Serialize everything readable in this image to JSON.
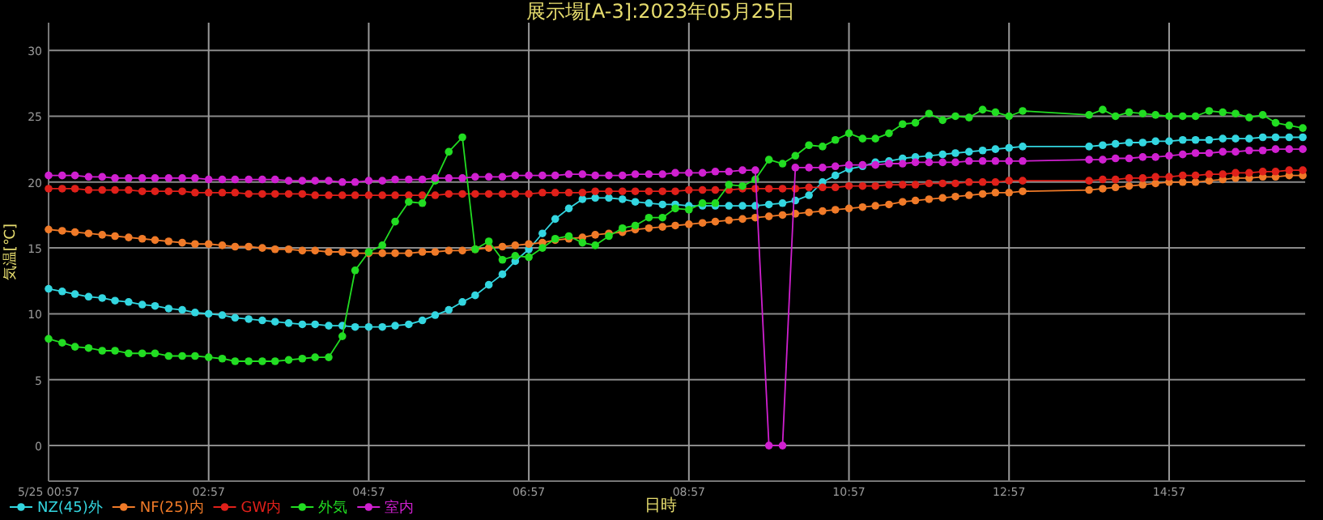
{
  "chart_data": {
    "type": "line",
    "title": "展示場[A-3]:2023年05月25日",
    "xlabel": "日時",
    "ylabel": "気温[℃]",
    "x": [
      0.95,
      1.12,
      1.28,
      1.45,
      1.62,
      1.78,
      1.95,
      2.12,
      2.28,
      2.45,
      2.62,
      2.78,
      2.95,
      3.12,
      3.28,
      3.45,
      3.62,
      3.78,
      3.95,
      4.12,
      4.28,
      4.45,
      4.62,
      4.78,
      4.95,
      5.12,
      5.28,
      5.45,
      5.62,
      5.78,
      5.95,
      6.12,
      6.28,
      6.45,
      6.62,
      6.78,
      6.95,
      7.12,
      7.28,
      7.45,
      7.62,
      7.78,
      7.95,
      8.12,
      8.28,
      8.45,
      8.62,
      8.78,
      8.95,
      9.12,
      9.28,
      9.45,
      9.62,
      9.78,
      9.95,
      10.12,
      10.28,
      10.45,
      10.62,
      10.78,
      10.95,
      11.12,
      11.28,
      11.45,
      11.62,
      11.78,
      11.95,
      12.12,
      12.28,
      12.45,
      12.62,
      12.78,
      12.95,
      13.12,
      13.95,
      14.12,
      14.28,
      14.45,
      14.62,
      14.78,
      14.95,
      15.12,
      15.28,
      15.45,
      15.62,
      15.78,
      15.95,
      16.12,
      16.28,
      16.45,
      16.62
    ],
    "series": [
      {
        "name": "NZ(45)外",
        "color": "#33d6e0",
        "values": [
          11.9,
          11.7,
          11.5,
          11.3,
          11.2,
          11.0,
          10.9,
          10.7,
          10.6,
          10.4,
          10.3,
          10.1,
          10.0,
          9.9,
          9.7,
          9.6,
          9.5,
          9.4,
          9.3,
          9.2,
          9.2,
          9.1,
          9.1,
          9.0,
          9.0,
          9.0,
          9.1,
          9.2,
          9.5,
          9.9,
          10.3,
          10.9,
          11.4,
          12.2,
          13.0,
          14.0,
          14.9,
          16.1,
          17.2,
          18.0,
          18.7,
          18.8,
          18.8,
          18.7,
          18.5,
          18.4,
          18.3,
          18.3,
          18.2,
          18.2,
          18.2,
          18.2,
          18.2,
          18.2,
          18.3,
          18.4,
          18.6,
          19.0,
          20.0,
          20.5,
          21.0,
          21.2,
          21.5,
          21.6,
          21.8,
          21.9,
          22.0,
          22.1,
          22.2,
          22.3,
          22.4,
          22.5,
          22.6,
          22.7,
          22.7,
          22.8,
          22.9,
          23.0,
          23.0,
          23.1,
          23.1,
          23.2,
          23.2,
          23.2,
          23.3,
          23.3,
          23.3,
          23.4,
          23.4,
          23.4,
          23.4
        ]
      },
      {
        "name": "NF(25)内",
        "color": "#f07a28",
        "values": [
          16.4,
          16.3,
          16.2,
          16.1,
          16.0,
          15.9,
          15.8,
          15.7,
          15.6,
          15.5,
          15.4,
          15.3,
          15.3,
          15.2,
          15.1,
          15.1,
          15.0,
          14.9,
          14.9,
          14.8,
          14.8,
          14.7,
          14.7,
          14.6,
          14.6,
          14.6,
          14.6,
          14.6,
          14.7,
          14.7,
          14.8,
          14.8,
          14.9,
          15.0,
          15.1,
          15.2,
          15.3,
          15.4,
          15.6,
          15.7,
          15.8,
          16.0,
          16.1,
          16.2,
          16.4,
          16.5,
          16.6,
          16.7,
          16.8,
          16.9,
          17.0,
          17.1,
          17.2,
          17.3,
          17.4,
          17.5,
          17.6,
          17.7,
          17.8,
          17.9,
          18.0,
          18.1,
          18.2,
          18.3,
          18.5,
          18.6,
          18.7,
          18.8,
          18.9,
          19.0,
          19.1,
          19.2,
          19.2,
          19.3,
          19.4,
          19.5,
          19.6,
          19.7,
          19.8,
          19.9,
          20.0,
          20.0,
          20.0,
          20.1,
          20.2,
          20.3,
          20.3,
          20.4,
          20.4,
          20.5,
          20.5
        ]
      },
      {
        "name": "GW内",
        "color": "#e0201a",
        "values": [
          19.5,
          19.5,
          19.5,
          19.4,
          19.4,
          19.4,
          19.4,
          19.3,
          19.3,
          19.3,
          19.3,
          19.2,
          19.2,
          19.2,
          19.2,
          19.1,
          19.1,
          19.1,
          19.1,
          19.1,
          19.0,
          19.0,
          19.0,
          19.0,
          19.0,
          19.0,
          19.0,
          19.0,
          19.0,
          19.0,
          19.1,
          19.1,
          19.1,
          19.1,
          19.1,
          19.1,
          19.1,
          19.2,
          19.2,
          19.2,
          19.2,
          19.3,
          19.3,
          19.3,
          19.3,
          19.3,
          19.3,
          19.3,
          19.4,
          19.4,
          19.4,
          19.4,
          19.5,
          19.5,
          19.5,
          19.5,
          19.5,
          19.6,
          19.6,
          19.6,
          19.7,
          19.7,
          19.7,
          19.8,
          19.8,
          19.8,
          19.9,
          19.9,
          19.9,
          20.0,
          20.0,
          20.0,
          20.1,
          20.1,
          20.1,
          20.2,
          20.2,
          20.3,
          20.3,
          20.4,
          20.4,
          20.5,
          20.5,
          20.6,
          20.6,
          20.7,
          20.7,
          20.8,
          20.8,
          20.9,
          20.9
        ]
      },
      {
        "name": "外気",
        "color": "#22dd22",
        "values": [
          8.1,
          7.8,
          7.5,
          7.4,
          7.2,
          7.2,
          7.0,
          7.0,
          7.0,
          6.8,
          6.8,
          6.8,
          6.7,
          6.6,
          6.4,
          6.4,
          6.4,
          6.4,
          6.5,
          6.6,
          6.7,
          6.7,
          8.3,
          13.3,
          14.7,
          15.2,
          17.0,
          18.5,
          18.4,
          20.1,
          22.3,
          23.4,
          14.9,
          15.5,
          14.1,
          14.4,
          14.3,
          15.0,
          15.7,
          15.9,
          15.4,
          15.2,
          15.9,
          16.5,
          16.7,
          17.3,
          17.3,
          18.0,
          17.9,
          18.4,
          18.4,
          19.8,
          19.7,
          20.2,
          21.7,
          21.4,
          22.0,
          22.8,
          22.7,
          23.2,
          23.7,
          23.3,
          23.3,
          23.7,
          24.4,
          24.5,
          25.2,
          24.7,
          25.0,
          24.9,
          25.5,
          25.3,
          25.0,
          25.4,
          25.1,
          25.5,
          25.0,
          25.3,
          25.2,
          25.1,
          25.0,
          25.0,
          25.0,
          25.4,
          25.3,
          25.2,
          24.9,
          25.1,
          24.5,
          24.3,
          24.1
        ]
      },
      {
        "name": "室内",
        "color": "#d020d0",
        "values": [
          20.5,
          20.5,
          20.5,
          20.4,
          20.4,
          20.3,
          20.3,
          20.3,
          20.3,
          20.3,
          20.3,
          20.3,
          20.2,
          20.2,
          20.2,
          20.2,
          20.2,
          20.2,
          20.1,
          20.1,
          20.1,
          20.1,
          20.0,
          20.0,
          20.1,
          20.1,
          20.2,
          20.2,
          20.2,
          20.3,
          20.3,
          20.3,
          20.4,
          20.4,
          20.4,
          20.5,
          20.5,
          20.5,
          20.5,
          20.6,
          20.6,
          20.5,
          20.5,
          20.5,
          20.6,
          20.6,
          20.6,
          20.7,
          20.7,
          20.7,
          20.8,
          20.8,
          20.9,
          20.9,
          0.0,
          0.0,
          21.1,
          21.1,
          21.1,
          21.2,
          21.3,
          21.3,
          21.3,
          21.4,
          21.4,
          21.5,
          21.5,
          21.5,
          21.5,
          21.6,
          21.6,
          21.6,
          21.6,
          21.6,
          21.7,
          21.7,
          21.8,
          21.8,
          21.9,
          21.9,
          22.0,
          22.1,
          22.2,
          22.2,
          22.3,
          22.3,
          22.4,
          22.4,
          22.5,
          22.5,
          22.5
        ]
      }
    ],
    "xlim": [
      0.95,
      16.65
    ],
    "xticks": [
      {
        "value": 0.95,
        "label": "5/25 00:57"
      },
      {
        "value": 2.95,
        "label": "02:57"
      },
      {
        "value": 4.95,
        "label": "04:57"
      },
      {
        "value": 6.95,
        "label": "06:57"
      },
      {
        "value": 8.95,
        "label": "08:57"
      },
      {
        "value": 10.95,
        "label": "10:57"
      },
      {
        "value": 12.95,
        "label": "12:57"
      },
      {
        "value": 14.95,
        "label": "14:57"
      }
    ],
    "ylim": [
      -2.7,
      32.1
    ],
    "yticks": [
      0,
      5,
      10,
      15,
      20,
      25,
      30
    ],
    "grid": true,
    "legend": "bottom left",
    "marker": "circle",
    "line_style": "solid"
  }
}
